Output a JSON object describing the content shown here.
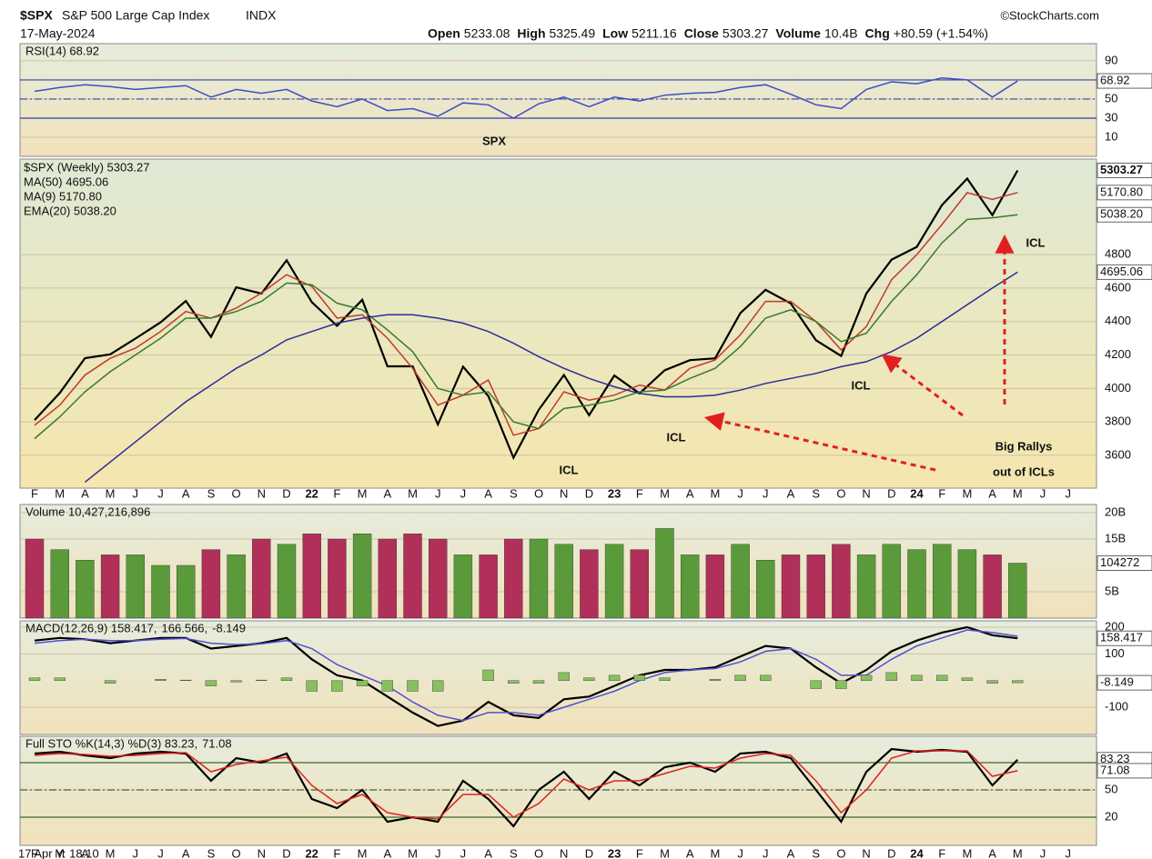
{
  "header": {
    "symbol": "$SPX",
    "name": "S&P 500 Large Cap Index",
    "exchange": "INDX",
    "source": "©StockCharts.com",
    "date": "17-May-2024",
    "quote": [
      [
        "Open",
        "5233.08"
      ],
      [
        "High",
        "5325.49"
      ],
      [
        "Low",
        "5211.16"
      ],
      [
        "Close",
        "5303.27"
      ],
      [
        "Volume",
        "10.4B"
      ],
      [
        "Chg",
        "+80.59 (+1.54%)"
      ]
    ],
    "footer": "17 Apr Y: 18.10"
  },
  "chart_data": [
    {
      "type": "line",
      "ylim": [
        -10,
        108
      ],
      "yticks": [
        10,
        30,
        50,
        90
      ],
      "reference_lines": [
        30,
        50,
        70
      ],
      "right_labels": [
        "68.92"
      ],
      "series": [
        {
          "name": "RSI(14) 68.92",
          "color": "#3b4fc4",
          "values": [
            58,
            62,
            65,
            63,
            60,
            62,
            64,
            52,
            60,
            56,
            60,
            48,
            42,
            50,
            38,
            40,
            32,
            46,
            44,
            30,
            45,
            52,
            42,
            52,
            48,
            54,
            56,
            57,
            62,
            65,
            55,
            44,
            40,
            60,
            68,
            66,
            72,
            70,
            52,
            68.92,
            null,
            null
          ]
        }
      ]
    },
    {
      "type": "line",
      "ylim": [
        3404,
        5371
      ],
      "yticks": [
        3600,
        3800,
        4000,
        4200,
        4400,
        4600,
        4800
      ],
      "categories": [
        "F",
        "M",
        "A",
        "M",
        "J",
        "J",
        "A",
        "S",
        "O",
        "N",
        "D",
        "22",
        "F",
        "M",
        "A",
        "M",
        "J",
        "J",
        "A",
        "S",
        "O",
        "N",
        "D",
        "23",
        "F",
        "M",
        "A",
        "M",
        "J",
        "J",
        "A",
        "S",
        "O",
        "N",
        "D",
        "24",
        "F",
        "M",
        "A",
        "M",
        "J",
        "J"
      ],
      "right_labels": [
        "5303.27",
        "5170.80",
        "5038.20",
        "4695.06"
      ],
      "annotations": [
        "SPX",
        "ICL",
        "ICL",
        "ICL",
        "ICL",
        "Big Rallys",
        "out of ICLs"
      ],
      "series": [
        {
          "name": "$SPX (Weekly) 5303.27",
          "color": "#000000",
          "values": [
            3811,
            3973,
            4181,
            4204,
            4298,
            4395,
            4523,
            4308,
            4605,
            4567,
            4766,
            4516,
            4374,
            4530,
            4132,
            4132,
            3785,
            4130,
            3955,
            3586,
            3872,
            4080,
            3840,
            4077,
            3970,
            4109,
            4169,
            4180,
            4450,
            4589,
            4508,
            4288,
            4194,
            4568,
            4770,
            4846,
            5096,
            5254,
            5036,
            5303.27,
            null,
            null
          ]
        },
        {
          "name": "MA(9) 5170.80",
          "color": "#c0392b",
          "values": [
            3780,
            3900,
            4080,
            4180,
            4240,
            4340,
            4460,
            4420,
            4480,
            4570,
            4680,
            4610,
            4420,
            4440,
            4300,
            4120,
            3900,
            3960,
            4050,
            3720,
            3760,
            3980,
            3930,
            3960,
            4020,
            3990,
            4120,
            4170,
            4320,
            4520,
            4520,
            4400,
            4230,
            4370,
            4650,
            4800,
            4980,
            5170,
            5130,
            5170.8,
            null,
            null
          ]
        },
        {
          "name": "EMA(20) 5038.20",
          "color": "#3a7a2a",
          "values": [
            3700,
            3830,
            3980,
            4100,
            4200,
            4300,
            4420,
            4420,
            4460,
            4520,
            4630,
            4620,
            4510,
            4470,
            4350,
            4220,
            4000,
            3960,
            3980,
            3800,
            3760,
            3880,
            3900,
            3930,
            3980,
            3990,
            4060,
            4120,
            4250,
            4420,
            4470,
            4400,
            4280,
            4330,
            4520,
            4680,
            4870,
            5010,
            5020,
            5038.2,
            null,
            null
          ]
        },
        {
          "name": "MA(50) 4695.06",
          "color": "#2b2b9a",
          "values": [
            null,
            null,
            3440,
            3560,
            3680,
            3800,
            3920,
            4020,
            4120,
            4200,
            4290,
            4340,
            4390,
            4420,
            4440,
            4440,
            4420,
            4390,
            4340,
            4270,
            4190,
            4120,
            4060,
            4010,
            3970,
            3950,
            3950,
            3960,
            3990,
            4030,
            4060,
            4090,
            4130,
            4160,
            4220,
            4300,
            4400,
            4500,
            4600,
            4695.06,
            null,
            null
          ]
        }
      ]
    },
    {
      "type": "bar",
      "ylim": [
        0,
        21.55
      ],
      "yticks": [
        {
          "value": 5,
          "label": "5B"
        },
        {
          "value": 15,
          "label": "15B"
        },
        {
          "value": 20,
          "label": "20B"
        }
      ],
      "right_labels": [
        "104272"
      ],
      "series": [
        {
          "name": "Volume 10,427,216,896",
          "color": "#5a9a3a",
          "values": [
            15,
            13,
            11,
            12,
            12,
            10,
            10,
            13,
            12,
            15,
            14,
            16,
            15,
            16,
            15,
            16,
            15,
            12,
            12,
            15,
            15,
            14,
            13,
            14,
            13,
            17,
            12,
            12,
            14,
            11,
            12,
            12,
            14,
            12,
            14,
            13,
            14,
            13,
            12,
            10.43,
            null,
            null
          ],
          "colors": [
            "#b0305a",
            "#5a9a3a",
            "#5a9a3a",
            "#b0305a",
            "#5a9a3a",
            "#5a9a3a",
            "#5a9a3a",
            "#b0305a",
            "#5a9a3a",
            "#b0305a",
            "#5a9a3a",
            "#b0305a",
            "#b0305a",
            "#5a9a3a",
            "#b0305a",
            "#b0305a",
            "#b0305a",
            "#5a9a3a",
            "#b0305a",
            "#b0305a",
            "#5a9a3a",
            "#5a9a3a",
            "#b0305a",
            "#5a9a3a",
            "#b0305a",
            "#5a9a3a",
            "#5a9a3a",
            "#b0305a",
            "#5a9a3a",
            "#5a9a3a",
            "#b0305a",
            "#b0305a",
            "#b0305a",
            "#5a9a3a",
            "#5a9a3a",
            "#5a9a3a",
            "#5a9a3a",
            "#5a9a3a",
            "#b0305a",
            "#5a9a3a",
            null,
            null
          ]
        }
      ]
    },
    {
      "type": "line",
      "ylim": [
        -202,
        224
      ],
      "yticks": [
        -100,
        100,
        200
      ],
      "right_labels": [
        "158.417",
        "-8.149"
      ],
      "series": [
        {
          "name": "MACD(12,26,9) 158.417,",
          "color": "#000000",
          "values": [
            150,
            160,
            155,
            140,
            150,
            160,
            160,
            120,
            130,
            140,
            160,
            80,
            20,
            0,
            -60,
            -120,
            -170,
            -150,
            -80,
            -130,
            -140,
            -70,
            -60,
            -20,
            20,
            40,
            40,
            50,
            90,
            130,
            120,
            50,
            -10,
            40,
            110,
            150,
            180,
            200,
            170,
            158.417,
            null,
            null
          ]
        },
        {
          "name": "166.566,",
          "color": "#5050d0",
          "values": [
            140,
            150,
            155,
            150,
            150,
            155,
            158,
            140,
            135,
            138,
            150,
            120,
            60,
            20,
            -20,
            -80,
            -130,
            -150,
            -120,
            -120,
            -130,
            -100,
            -70,
            -40,
            0,
            30,
            40,
            45,
            70,
            110,
            120,
            80,
            20,
            20,
            80,
            130,
            160,
            190,
            180,
            166.566,
            null,
            null
          ]
        },
        {
          "name": "-8.149",
          "color": "#88c060",
          "type": "bar",
          "values": [
            10,
            10,
            0,
            -10,
            0,
            5,
            2,
            -20,
            -5,
            2,
            10,
            -40,
            -40,
            -20,
            -40,
            -40,
            -40,
            0,
            40,
            -10,
            -10,
            30,
            10,
            20,
            20,
            10,
            0,
            5,
            20,
            20,
            0,
            -30,
            -30,
            20,
            30,
            20,
            20,
            10,
            -10,
            -8.149,
            null,
            null
          ]
        }
      ]
    },
    {
      "type": "line",
      "ylim": [
        -11,
        109
      ],
      "yticks": [
        20,
        50
      ],
      "reference_lines": [
        20,
        50,
        80
      ],
      "right_labels": [
        "83.23",
        "71.08"
      ],
      "series": [
        {
          "name": "Full STO %K(14,3) %D(3) 83.23,",
          "color": "#000000",
          "values": [
            90,
            92,
            88,
            85,
            90,
            92,
            90,
            60,
            85,
            80,
            90,
            40,
            30,
            50,
            15,
            20,
            15,
            60,
            40,
            10,
            50,
            70,
            40,
            70,
            55,
            75,
            80,
            70,
            90,
            92,
            85,
            50,
            15,
            70,
            95,
            92,
            94,
            92,
            55,
            83.23,
            null,
            null
          ]
        },
        {
          "name": "71.08",
          "color": "#e02020",
          "values": [
            88,
            90,
            89,
            87,
            88,
            90,
            91,
            70,
            78,
            82,
            86,
            55,
            35,
            45,
            25,
            20,
            18,
            45,
            45,
            20,
            35,
            62,
            50,
            60,
            60,
            68,
            76,
            74,
            85,
            90,
            88,
            60,
            25,
            50,
            85,
            93,
            93,
            93,
            65,
            71.08,
            null,
            null
          ]
        }
      ]
    }
  ]
}
